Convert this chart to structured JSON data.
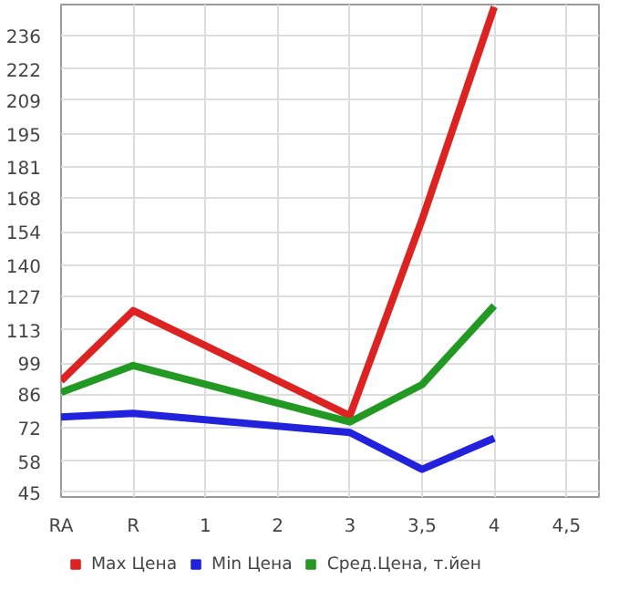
{
  "chart_data": {
    "type": "line",
    "categories": [
      "RA",
      "R",
      "1",
      "2",
      "3",
      "3,5",
      "4",
      "4,5"
    ],
    "series": [
      {
        "name": "Max Цена",
        "color": "#dd2222",
        "values": [
          91.6,
          121,
          null,
          null,
          77,
          159,
          248,
          null
        ]
      },
      {
        "name": "Min Цена",
        "color": "#2222dd",
        "values": [
          76.5,
          78,
          null,
          null,
          70,
          54.6,
          67.6,
          null
        ]
      },
      {
        "name": "Сред.Цена, т.йен",
        "color": "#229922",
        "values": [
          86.8,
          98,
          null,
          null,
          74.4,
          90,
          123,
          null
        ]
      }
    ],
    "ylim": [
      43,
      249
    ],
    "yticks": [
      45,
      58,
      72,
      86,
      99,
      113,
      127,
      140,
      154,
      168,
      181,
      195,
      209,
      222,
      236
    ],
    "grid": true,
    "legend": "bottom",
    "line_style": "solid",
    "marker": "none"
  }
}
